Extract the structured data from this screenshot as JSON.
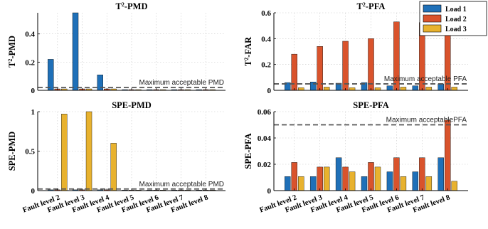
{
  "colors": {
    "load1": "#1f70b8",
    "load2": "#d9532c",
    "load3": "#e8b22e",
    "threshold": "#555555"
  },
  "legend": [
    "Load 1",
    "Load 2",
    "Load 3"
  ],
  "chart_data": [
    {
      "id": "t2pmd",
      "type": "bar",
      "title": "T2-PMD",
      "ylabel": "T2-PMD",
      "ylim": [
        0,
        0.55
      ],
      "yticks": [
        0,
        0.2,
        0.4
      ],
      "ytick_labels": [
        "0",
        "0.2",
        "0.4"
      ],
      "categories": [
        "Fault level 2",
        "Fault level 3",
        "Fault level 4",
        "Fault level 5",
        "Fault level 6",
        "Fault level 7",
        "Fault level 8"
      ],
      "show_xtick_labels": false,
      "series": [
        {
          "name": "Load 1",
          "values": [
            0.22,
            0.55,
            0.11,
            0.005,
            0.005,
            0.005,
            0.005
          ]
        },
        {
          "name": "Load 2",
          "values": [
            0.01,
            0.01,
            0.01,
            0.005,
            0.005,
            0.005,
            0.005
          ]
        },
        {
          "name": "Load 3",
          "values": [
            0.01,
            0.01,
            0.01,
            0.005,
            0.005,
            0.005,
            0.005
          ]
        }
      ],
      "threshold": {
        "value": 0.02,
        "label": "Maximum acceptable PMD"
      },
      "grid": true
    },
    {
      "id": "t2pfa",
      "type": "bar",
      "title": "T2-PFA",
      "ylabel": "T2-FAR",
      "ylim": [
        0,
        0.6
      ],
      "yticks": [
        0,
        0.2,
        0.4,
        0.6
      ],
      "ytick_labels": [
        "0",
        "0.2",
        "0.4",
        "0.6"
      ],
      "categories": [
        "Fault level 2",
        "Fault level 3",
        "Fault level 4",
        "Fault level 5",
        "Fault level 6",
        "Fault level 7",
        "Fault level 8"
      ],
      "show_xtick_labels": false,
      "series": [
        {
          "name": "Load 1",
          "values": [
            0.06,
            0.065,
            0.055,
            0.06,
            0.035,
            0.035,
            0.05
          ]
        },
        {
          "name": "Load 2",
          "values": [
            0.28,
            0.34,
            0.38,
            0.4,
            0.53,
            0.525,
            0.545
          ]
        },
        {
          "name": "Load 3",
          "values": [
            0.02,
            0.025,
            0.02,
            0.02,
            0.025,
            0.025,
            0.025
          ]
        }
      ],
      "threshold": {
        "value": 0.05,
        "label": "Maximum acceptable PFA"
      },
      "grid": true,
      "legend": "top-right"
    },
    {
      "id": "spepmd",
      "type": "bar",
      "title": "SPE-PMD",
      "ylabel": "SPE-PMD",
      "ylim": [
        0,
        1
      ],
      "yticks": [
        0,
        0.5,
        1
      ],
      "ytick_labels": [
        "0",
        "0.5",
        "1"
      ],
      "categories": [
        "Fault level 2",
        "Fault level 3",
        "Fault level 4",
        "Fault level 5",
        "Fault level 6",
        "Fault level 7",
        "Fault level 8"
      ],
      "show_xtick_labels": true,
      "series": [
        {
          "name": "Load 1",
          "values": [
            0.01,
            0.01,
            0.01,
            0.005,
            0.005,
            0.005,
            0.005
          ]
        },
        {
          "name": "Load 2",
          "values": [
            0.01,
            0.01,
            0.01,
            0.005,
            0.005,
            0.005,
            0.005
          ]
        },
        {
          "name": "Load 3",
          "values": [
            0.97,
            1.0,
            0.6,
            0.005,
            0.005,
            0.005,
            0.005
          ]
        }
      ],
      "threshold": {
        "value": 0.02,
        "label": "Maximum acceptable PMD"
      },
      "grid": true
    },
    {
      "id": "spepfa",
      "type": "bar",
      "title": "SPE-PFA",
      "ylabel": "SPE-PFA",
      "ylim": [
        0,
        0.06
      ],
      "yticks": [
        0,
        0.02,
        0.04,
        0.06
      ],
      "ytick_labels": [
        "0",
        "0.02",
        "0.04",
        "0.06"
      ],
      "categories": [
        "Fault level 2",
        "Fault level 3",
        "Fault level 4",
        "Fault level 5",
        "Fault level 6",
        "Fault level 7",
        "Fault level 8"
      ],
      "show_xtick_labels": true,
      "series": [
        {
          "name": "Load 1",
          "values": [
            0.0107,
            0.0107,
            0.025,
            0.0107,
            0.0143,
            0.0143,
            0.025
          ]
        },
        {
          "name": "Load 2",
          "values": [
            0.0214,
            0.0179,
            0.0179,
            0.0214,
            0.025,
            0.025,
            0.0536
          ]
        },
        {
          "name": "Load 3",
          "values": [
            0.0107,
            0.0179,
            0.0143,
            0.0179,
            0.0107,
            0.0107,
            0.0071
          ]
        }
      ],
      "threshold": {
        "value": 0.05,
        "label": "Maximum acceptablePFA"
      },
      "grid": true
    }
  ]
}
